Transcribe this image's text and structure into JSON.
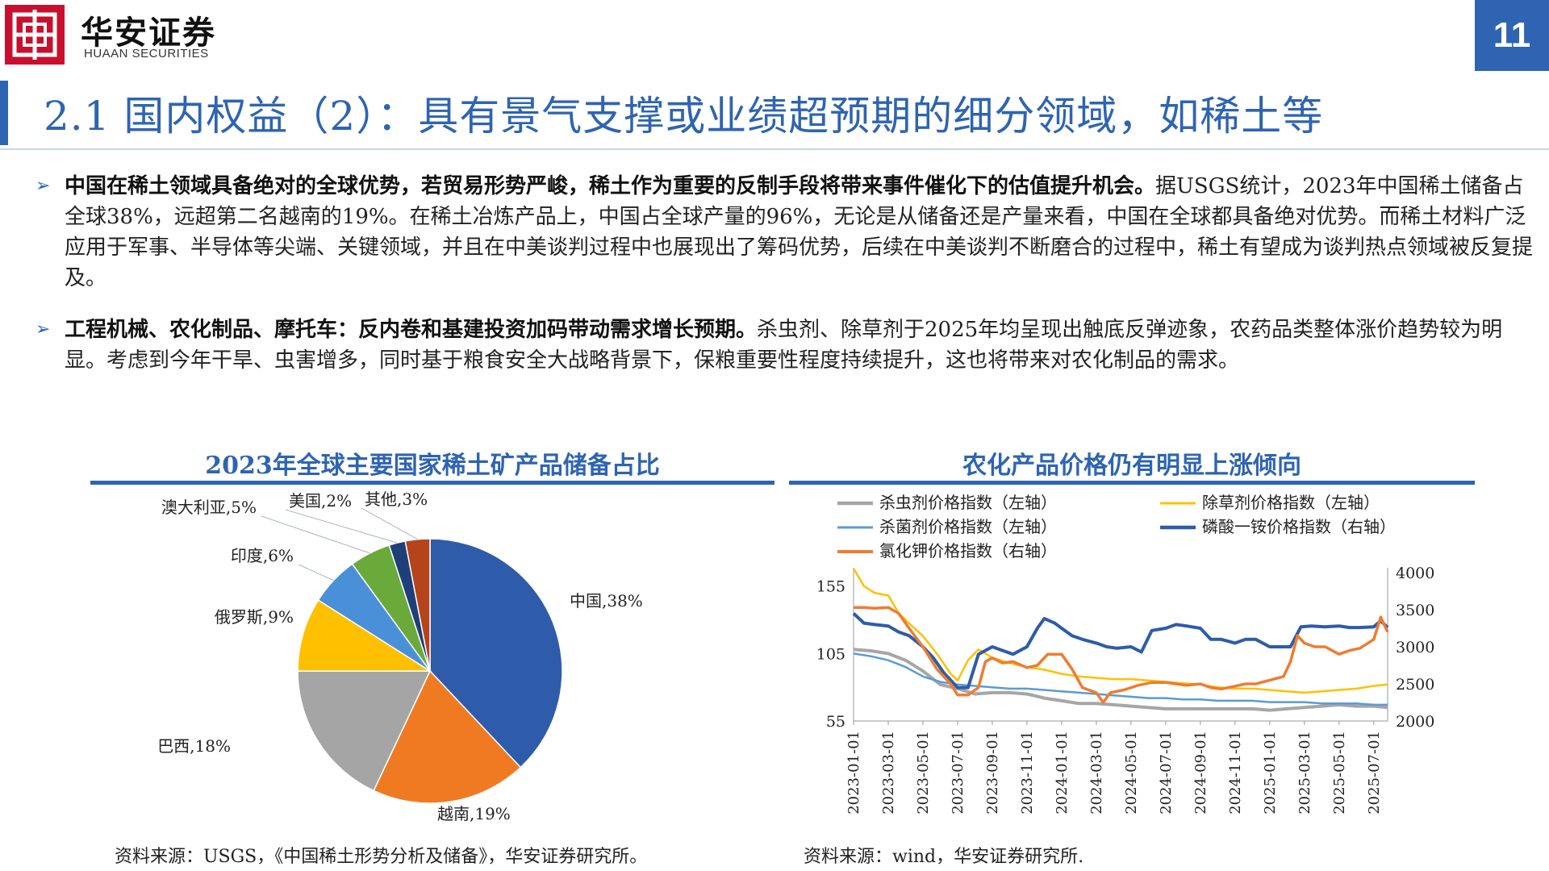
{
  "header": {
    "logo_cn": "华安证券",
    "logo_en": "HUAAN SECURITIES",
    "page_number": "11",
    "title": "2.1 国内权益（2）：具有景气支撑或业绩超预期的细分领域，如稀土等"
  },
  "bullets": [
    {
      "marker": "➢",
      "bold": "中国在稀土领域具备绝对的全球优势，若贸易形势严峻，稀土作为重要的反制手段将带来事件催化下的估值提升机会。",
      "text": "据USGS统计，2023年中国稀土储备占全球38%，远超第二名越南的19%。在稀土冶炼产品上，中国占全球产量的96%，无论是从储备还是产量来看，中国在全球都具备绝对优势。而稀土材料广泛应用于军事、半导体等尖端、关键领域，并且在中美谈判过程中也展现出了筹码优势，后续在中美谈判不断磨合的过程中，稀土有望成为谈判热点领域被反复提及。"
    },
    {
      "marker": "➢",
      "bold": "工程机械、农化制品、摩托车：反内卷和基建投资加码带动需求增长预期。",
      "text": "杀虫剂、除草剂于2025年均呈现出触底反弹迹象，农药品类整体涨价趋势较为明显。考虑到今年干旱、虫害增多，同时基于粮食安全大战略背景下，保粮重要性程度持续提升，这也将带来对农化制品的需求。"
    }
  ],
  "left_chart": {
    "title": "2023年全球主要国家稀土矿产品储备占比",
    "source": "资料来源：USGS，《中国稀土形势分析及储备》，华安证券研究所。"
  },
  "right_chart": {
    "title": "农化产品价格仍有明显上涨倾向",
    "source": "资料来源：wind，华安证券研究所."
  },
  "chart_data": [
    {
      "type": "pie",
      "title": "2023年全球主要国家稀土矿产品储备占比",
      "slices": [
        {
          "label": "中国,38%",
          "name": "中国",
          "value": 38,
          "color": "#2e5caa"
        },
        {
          "label": "越南,19%",
          "name": "越南",
          "value": 19,
          "color": "#f07a22"
        },
        {
          "label": "巴西,18%",
          "name": "巴西",
          "value": 18,
          "color": "#a5a5a5"
        },
        {
          "label": "俄罗斯,9%",
          "name": "俄罗斯",
          "value": 9,
          "color": "#ffc000"
        },
        {
          "label": "印度,6%",
          "name": "印度",
          "value": 6,
          "color": "#4a90d9"
        },
        {
          "label": "澳大利亚,5%",
          "name": "澳大利亚",
          "value": 5,
          "color": "#6aaa3a"
        },
        {
          "label": "美国,2%",
          "name": "美国",
          "value": 2,
          "color": "#1f3f7a"
        },
        {
          "label": "其他,3%",
          "name": "其他",
          "value": 3,
          "color": "#b5441a"
        }
      ]
    },
    {
      "type": "line",
      "x_ticks": [
        "2023-01-01",
        "2023-03-01",
        "2023-05-01",
        "2023-07-01",
        "2023-09-01",
        "2023-11-01",
        "2024-01-01",
        "2024-03-01",
        "2024-05-01",
        "2024-07-01",
        "2024-09-01",
        "2024-11-01",
        "2025-01-01",
        "2025-03-01",
        "2025-05-01",
        "2025-07-01"
      ],
      "y_left": {
        "ticks": [
          55,
          105,
          155
        ],
        "range": [
          55,
          165
        ]
      },
      "y_right": {
        "ticks": [
          2000,
          2500,
          3000,
          3500,
          4000
        ],
        "range": [
          2000,
          4000
        ]
      },
      "legend_columns": 2,
      "series": [
        {
          "name": "杀虫剂价格指数（左轴）",
          "axis": "left",
          "color": "#a6a6a6",
          "width": 4,
          "values": [
            [
              0,
              108
            ],
            [
              0.5,
              107
            ],
            [
              1,
              105
            ],
            [
              1.5,
              100
            ],
            [
              2,
              92
            ],
            [
              2.5,
              82
            ],
            [
              3,
              79
            ],
            [
              3.5,
              75
            ],
            [
              4,
              76
            ],
            [
              4.5,
              76
            ],
            [
              5,
              75
            ],
            [
              5.5,
              72
            ],
            [
              6,
              70
            ],
            [
              6.5,
              68
            ],
            [
              7,
              68
            ],
            [
              7.5,
              67
            ],
            [
              8,
              66
            ],
            [
              8.5,
              65
            ],
            [
              9,
              64
            ],
            [
              9.5,
              64
            ],
            [
              10,
              64
            ],
            [
              10.5,
              64
            ],
            [
              11,
              64
            ],
            [
              11.5,
              64
            ],
            [
              12,
              63
            ],
            [
              12.5,
              64
            ],
            [
              13,
              65
            ],
            [
              13.5,
              66
            ],
            [
              14,
              67
            ],
            [
              14.5,
              66
            ],
            [
              15,
              66
            ],
            [
              15.4,
              65
            ]
          ]
        },
        {
          "name": "除草剂价格指数（左轴）",
          "axis": "left",
          "color": "#ffc000",
          "width": 2.5,
          "values": [
            [
              0,
              168
            ],
            [
              0.3,
              155
            ],
            [
              0.6,
              150
            ],
            [
              1,
              148
            ],
            [
              1.3,
              135
            ],
            [
              1.7,
              125
            ],
            [
              2,
              118
            ],
            [
              2.4,
              105
            ],
            [
              2.8,
              90
            ],
            [
              3,
              85
            ],
            [
              3.3,
              100
            ],
            [
              3.6,
              108
            ],
            [
              4,
              102
            ],
            [
              4.5,
              98
            ],
            [
              5,
              95
            ],
            [
              5.5,
              93
            ],
            [
              6,
              90
            ],
            [
              6.5,
              88
            ],
            [
              7,
              87
            ],
            [
              7.5,
              86
            ],
            [
              8,
              86
            ],
            [
              8.5,
              85
            ],
            [
              9,
              84
            ],
            [
              9.5,
              83
            ],
            [
              10,
              82
            ],
            [
              10.5,
              80
            ],
            [
              11,
              79
            ],
            [
              11.5,
              79
            ],
            [
              12,
              78
            ],
            [
              12.5,
              77
            ],
            [
              13,
              76
            ],
            [
              13.5,
              77
            ],
            [
              14,
              78
            ],
            [
              14.5,
              79
            ],
            [
              15,
              81
            ],
            [
              15.4,
              82
            ]
          ]
        },
        {
          "name": "杀菌剂价格指数（左轴）",
          "axis": "left",
          "color": "#5b9bd5",
          "width": 2.5,
          "values": [
            [
              0,
              105
            ],
            [
              0.5,
              103
            ],
            [
              1,
              100
            ],
            [
              1.5,
              95
            ],
            [
              2,
              88
            ],
            [
              2.5,
              84
            ],
            [
              3,
              82
            ],
            [
              3.5,
              81
            ],
            [
              4,
              80
            ],
            [
              4.5,
              79
            ],
            [
              5,
              79
            ],
            [
              5.5,
              78
            ],
            [
              6,
              77
            ],
            [
              6.5,
              76
            ],
            [
              7,
              75
            ],
            [
              7.5,
              74
            ],
            [
              8,
              73
            ],
            [
              8.5,
              72
            ],
            [
              9,
              72
            ],
            [
              9.5,
              71
            ],
            [
              10,
              71
            ],
            [
              10.5,
              70
            ],
            [
              11,
              70
            ],
            [
              11.5,
              70
            ],
            [
              12,
              69
            ],
            [
              12.5,
              69
            ],
            [
              13,
              69
            ],
            [
              13.5,
              68
            ],
            [
              14,
              68
            ],
            [
              14.5,
              68
            ],
            [
              15,
              67
            ],
            [
              15.4,
              67
            ]
          ]
        },
        {
          "name": "磷酸一铵价格指数（右轴）",
          "axis": "right",
          "color": "#2e5caa",
          "width": 4,
          "values": [
            [
              0,
              3450
            ],
            [
              0.3,
              3320
            ],
            [
              0.6,
              3300
            ],
            [
              1,
              3280
            ],
            [
              1.3,
              3200
            ],
            [
              1.6,
              3150
            ],
            [
              2,
              3000
            ],
            [
              2.3,
              2850
            ],
            [
              2.6,
              2650
            ],
            [
              3,
              2450
            ],
            [
              3.3,
              2450
            ],
            [
              3.6,
              2900
            ],
            [
              4,
              3000
            ],
            [
              4.3,
              2950
            ],
            [
              4.6,
              2900
            ],
            [
              5,
              3000
            ],
            [
              5.3,
              3250
            ],
            [
              5.5,
              3380
            ],
            [
              5.8,
              3320
            ],
            [
              6,
              3250
            ],
            [
              6.3,
              3150
            ],
            [
              6.6,
              3100
            ],
            [
              7,
              3050
            ],
            [
              7.3,
              3000
            ],
            [
              7.6,
              2980
            ],
            [
              8,
              3000
            ],
            [
              8.3,
              2930
            ],
            [
              8.6,
              3220
            ],
            [
              9,
              3250
            ],
            [
              9.3,
              3300
            ],
            [
              9.6,
              3280
            ],
            [
              10,
              3250
            ],
            [
              10.3,
              3100
            ],
            [
              10.6,
              3100
            ],
            [
              11,
              3050
            ],
            [
              11.3,
              3100
            ],
            [
              11.6,
              3100
            ],
            [
              12,
              3000
            ],
            [
              12.3,
              3000
            ],
            [
              12.6,
              3000
            ],
            [
              12.9,
              3270
            ],
            [
              13.2,
              3280
            ],
            [
              13.6,
              3270
            ],
            [
              14,
              3280
            ],
            [
              14.3,
              3260
            ],
            [
              14.6,
              3260
            ],
            [
              15,
              3270
            ],
            [
              15.2,
              3350
            ],
            [
              15.4,
              3260
            ]
          ]
        },
        {
          "name": "氯化钾价格指数（右轴）",
          "axis": "right",
          "color": "#ed7d31",
          "width": 3.5,
          "values": [
            [
              0,
              3530
            ],
            [
              0.3,
              3530
            ],
            [
              0.6,
              3520
            ],
            [
              1,
              3530
            ],
            [
              1.3,
              3450
            ],
            [
              1.6,
              3250
            ],
            [
              2,
              3000
            ],
            [
              2.4,
              2700
            ],
            [
              2.8,
              2500
            ],
            [
              3,
              2350
            ],
            [
              3.3,
              2350
            ],
            [
              3.6,
              2450
            ],
            [
              3.8,
              2800
            ],
            [
              4,
              2850
            ],
            [
              4.3,
              2780
            ],
            [
              4.6,
              2800
            ],
            [
              5,
              2720
            ],
            [
              5.3,
              2750
            ],
            [
              5.6,
              2900
            ],
            [
              6,
              2900
            ],
            [
              6.3,
              2700
            ],
            [
              6.6,
              2450
            ],
            [
              7,
              2380
            ],
            [
              7.2,
              2250
            ],
            [
              7.4,
              2380
            ],
            [
              7.8,
              2420
            ],
            [
              8.2,
              2480
            ],
            [
              8.6,
              2520
            ],
            [
              9,
              2520
            ],
            [
              9.3,
              2500
            ],
            [
              9.6,
              2480
            ],
            [
              10,
              2500
            ],
            [
              10.3,
              2450
            ],
            [
              10.6,
              2430
            ],
            [
              11,
              2470
            ],
            [
              11.3,
              2500
            ],
            [
              11.6,
              2500
            ],
            [
              12,
              2550
            ],
            [
              12.4,
              2600
            ],
            [
              12.6,
              2800
            ],
            [
              12.8,
              3150
            ],
            [
              13,
              3050
            ],
            [
              13.3,
              3000
            ],
            [
              13.6,
              3000
            ],
            [
              14,
              2900
            ],
            [
              14.3,
              2950
            ],
            [
              14.6,
              2980
            ],
            [
              15,
              3100
            ],
            [
              15.2,
              3400
            ],
            [
              15.4,
              3200
            ]
          ]
        }
      ]
    }
  ]
}
